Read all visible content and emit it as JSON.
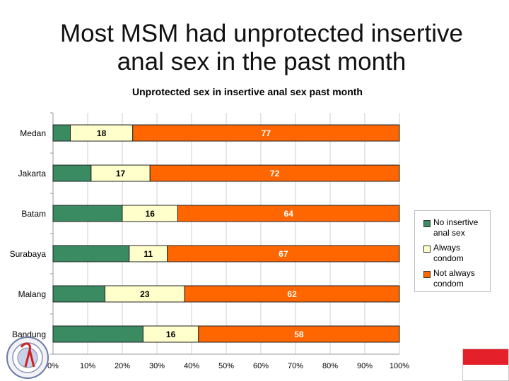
{
  "slide": {
    "title_line1": "Most MSM had unprotected insertive",
    "title_line2": "anal sex in the past month"
  },
  "chart_data": {
    "type": "bar",
    "orientation": "horizontal",
    "stacked": true,
    "stacking": "percent",
    "title": "Unprotected sex in insertive anal sex past month",
    "categories": [
      "Medan",
      "Jakarta",
      "Batam",
      "Surabaya",
      "Malang",
      "Bandung"
    ],
    "series": [
      {
        "name": "No insertive anal sex",
        "color": "#3a8a62",
        "values": [
          5,
          11,
          20,
          22,
          15,
          26
        ]
      },
      {
        "name": "Always condom",
        "color": "#ffffcc",
        "values": [
          18,
          17,
          16,
          11,
          23,
          16
        ]
      },
      {
        "name": "Not always condom",
        "color": "#ff6600",
        "values": [
          77,
          72,
          64,
          67,
          62,
          58
        ]
      }
    ],
    "labeled_series": [
      "Always condom",
      "Not always condom"
    ],
    "xlim": [
      0,
      100
    ],
    "xticks": [
      "0%",
      "10%",
      "20%",
      "30%",
      "40%",
      "50%",
      "60%",
      "70%",
      "80%",
      "90%",
      "100%"
    ],
    "gridlines": true,
    "legend": {
      "position": "right",
      "labels": [
        "No insertive anal sex",
        "Always condom",
        "Not always condom"
      ]
    }
  }
}
